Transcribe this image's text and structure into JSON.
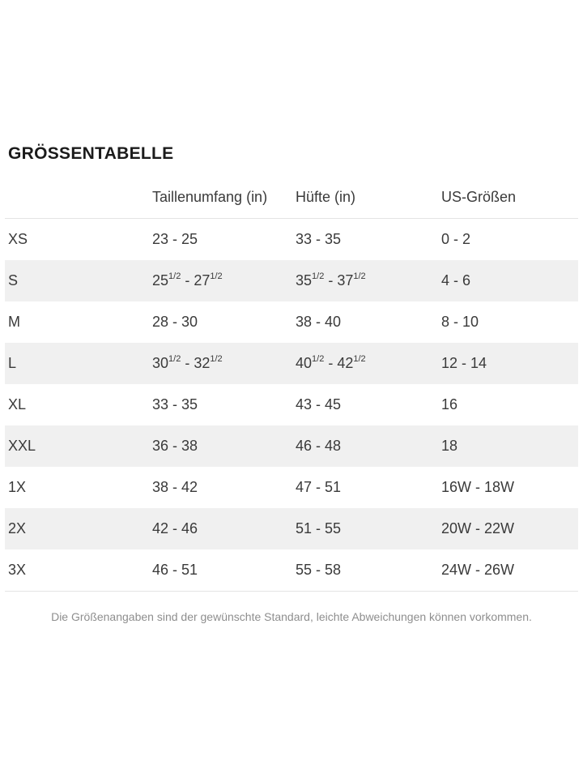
{
  "page": {
    "title": "GRÖSSENTABELLE",
    "footnote": "Die Größenangaben sind der gewünschte Standard, leichte Abweichungen können vorkommen."
  },
  "table": {
    "columns": {
      "size": "",
      "waist": "Taillenumfang (in)",
      "hip": "Hüfte (in)",
      "us": "US-Größen"
    },
    "rows": [
      {
        "size": "XS",
        "waist": "23 - 25",
        "hip": "33 - 35",
        "us": "0 - 2"
      },
      {
        "size": "S",
        "waist": "25[1/2] - 27[1/2]",
        "hip": "35[1/2] - 37[1/2]",
        "us": "4 - 6"
      },
      {
        "size": "M",
        "waist": "28 - 30",
        "hip": "38 - 40",
        "us": "8 - 10"
      },
      {
        "size": "L",
        "waist": "30[1/2] - 32[1/2]",
        "hip": "40[1/2] - 42[1/2]",
        "us": "12 - 14"
      },
      {
        "size": "XL",
        "waist": "33 - 35",
        "hip": "43 - 45",
        "us": "16"
      },
      {
        "size": "XXL",
        "waist": "36 - 38",
        "hip": "46 - 48",
        "us": "18"
      },
      {
        "size": "1X",
        "waist": "38 - 42",
        "hip": "47 - 51",
        "us": "16W - 18W"
      },
      {
        "size": "2X",
        "waist": "42 - 46",
        "hip": "51 - 55",
        "us": "20W - 22W"
      },
      {
        "size": "3X",
        "waist": "46 - 51",
        "hip": "55 - 58",
        "us": "24W - 26W"
      }
    ]
  },
  "colors": {
    "stripe": "#f0f0f0",
    "divider": "#e4e4e4",
    "text": "#3a3a3a",
    "title": "#1b1b1b",
    "muted": "#8e8e8e"
  }
}
